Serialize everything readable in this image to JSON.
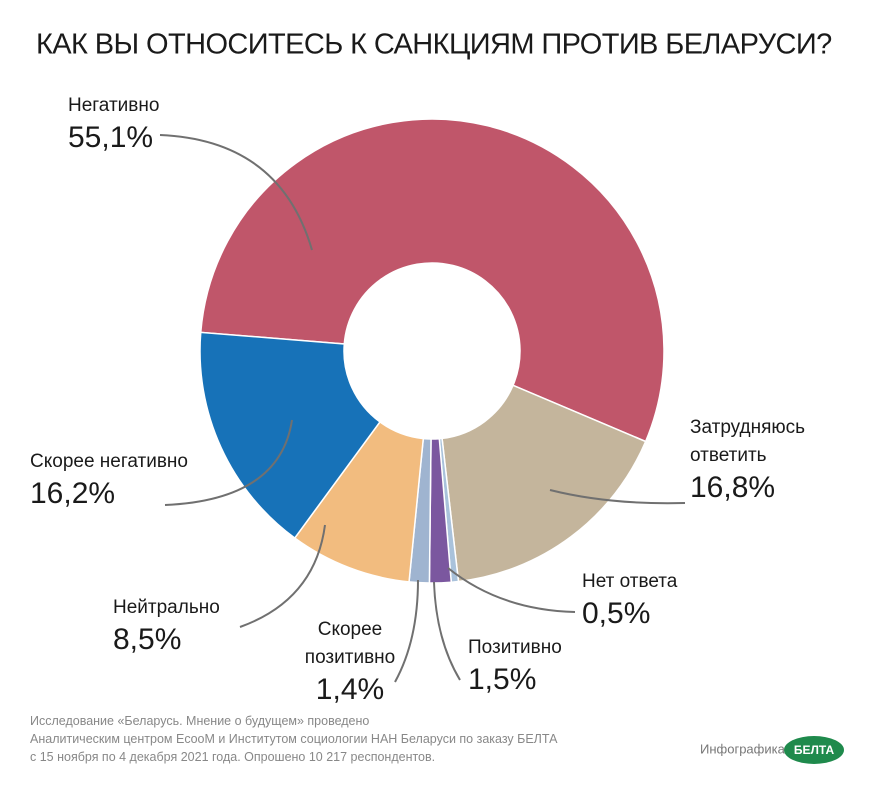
{
  "chart_data": {
    "type": "pie",
    "title": "КАК ВЫ ОТНОСИТЕСЬ К САНКЦИЯМ ПРОТИВ БЕЛАРУСИ?",
    "categories": [
      "Негативно",
      "Затрудняюсь ответить",
      "Нет ответа",
      "Позитивно",
      "Скорее позитивно",
      "Нейтрально",
      "Скорее негативно"
    ],
    "values": [
      55.1,
      16.8,
      0.5,
      1.5,
      1.4,
      8.5,
      16.2
    ],
    "value_labels": [
      "55,1%",
      "16,8%",
      "0,5%",
      "1,5%",
      "1,4%",
      "8,5%",
      "16,2%"
    ],
    "colors": [
      "#c0566a",
      "#c4b59c",
      "#a9c2db",
      "#7b579f",
      "#9fb4d0",
      "#f2bc7f",
      "#1772b8"
    ],
    "donut": true
  },
  "source": [
    "Исследование «Беларусь. Мнение о будущем» проведено",
    "Аналитическим центром EcooM и Институтом социологии НАН Беларуси по заказу БЕЛТА",
    "с 15 ноября по 4 декабря 2021 года. Опрошено 10 217 респондентов."
  ],
  "credit": "Инфографика",
  "logo": "БЕЛТА"
}
